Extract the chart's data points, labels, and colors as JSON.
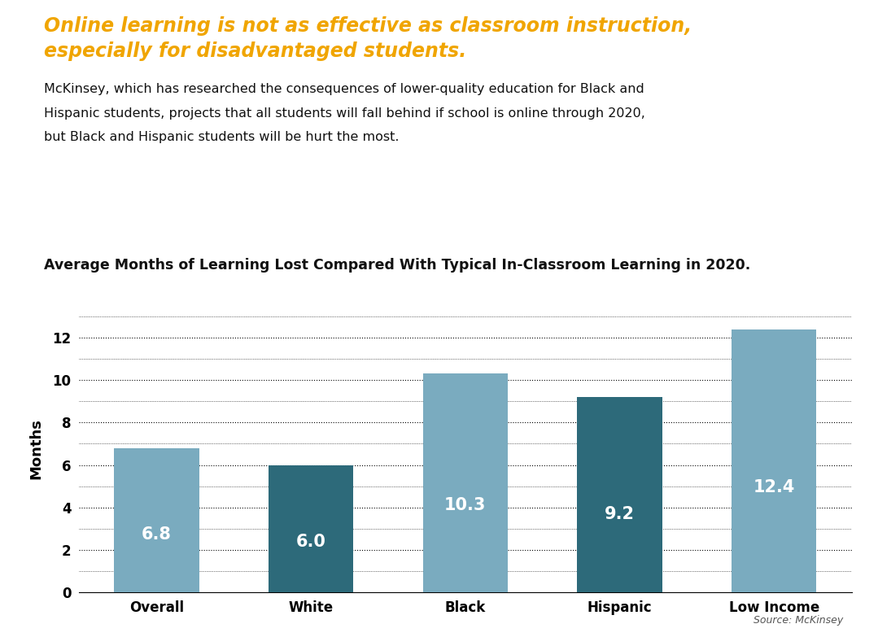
{
  "categories": [
    "Overall",
    "White",
    "Black",
    "Hispanic",
    "Low Income"
  ],
  "values": [
    6.8,
    6.0,
    10.3,
    9.2,
    12.4
  ],
  "bar_colors": [
    "#7aabbf",
    "#2d6a7a",
    "#7aabbf",
    "#2d6a7a",
    "#7aabbf"
  ],
  "title_line1": "Online learning is not as effective as classroom instruction,",
  "title_line2": "especially for disadvantaged students.",
  "title_color": "#f0a500",
  "subtitle_line1": "McKinsey, which has researched the consequences of lower-quality education for Black and",
  "subtitle_line2": "Hispanic students, projects that all students will fall behind if school is online through 2020,",
  "subtitle_line3": "but Black and Hispanic students will be hurt the most.",
  "chart_title": "Average Months of Learning Lost Compared With Typical In-Classroom Learning in 2020.",
  "ylabel": "Months",
  "ylim": [
    0,
    13.5
  ],
  "yticks": [
    0,
    2,
    4,
    6,
    8,
    10,
    12
  ],
  "source": "Source: McKinsey",
  "bar_label_color": "#ffffff",
  "bar_label_fontsize": 15,
  "background_color": "#ffffff",
  "title_fontsize": 17,
  "subtitle_fontsize": 11.5,
  "chart_title_fontsize": 12.5
}
